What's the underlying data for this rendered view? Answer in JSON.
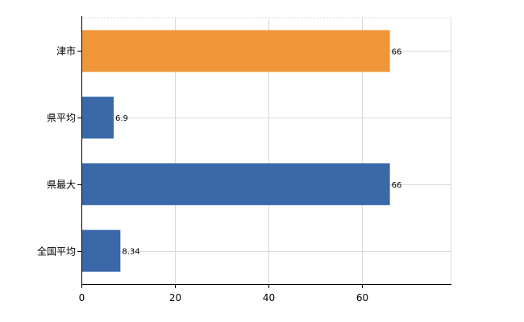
{
  "chart_data": {
    "type": "bar",
    "orientation": "horizontal",
    "categories": [
      "津市",
      "県平均",
      "県最大",
      "全国平均"
    ],
    "values": [
      66,
      6.9,
      66,
      8.34
    ],
    "data_labels": [
      "66",
      "6.9",
      "66",
      "8.34"
    ],
    "bar_colors": [
      "#f0963a",
      "#3a68a8",
      "#3a68a8",
      "#3a68a8"
    ],
    "x_ticks": [
      "0",
      "20",
      "40",
      "60"
    ],
    "xlim": [
      0,
      79
    ],
    "grid": true,
    "legend": "none"
  }
}
